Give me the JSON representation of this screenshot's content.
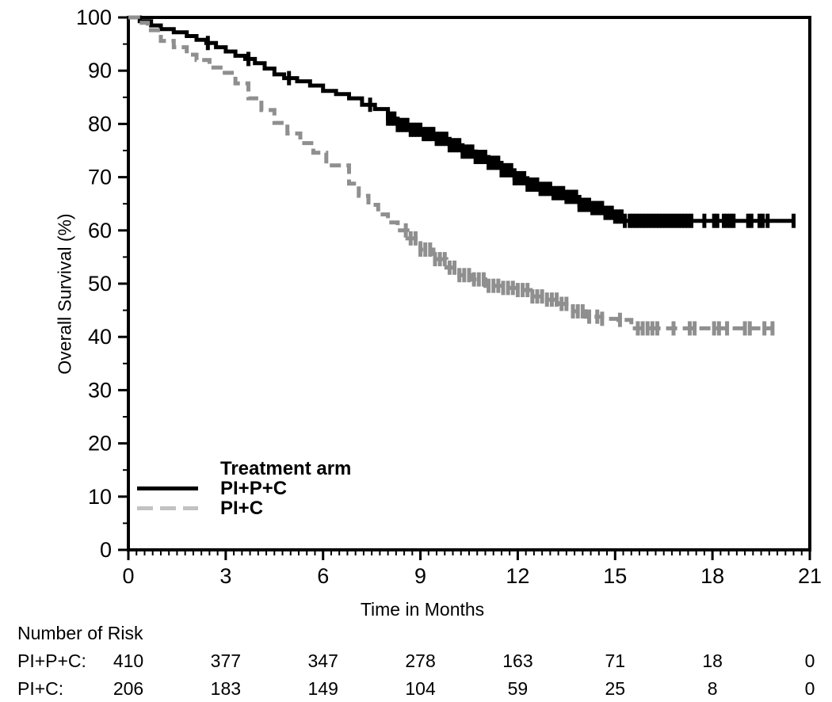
{
  "figure": {
    "background": "#ffffff",
    "axis_color": "#000000",
    "text_color": "#000000"
  },
  "chart_data": {
    "type": "line",
    "subtype": "kaplan-meier-step",
    "title": "",
    "xlabel": "Time in Months",
    "ylabel": "Overall Survival (%)",
    "xlim": [
      0,
      21
    ],
    "ylim": [
      0,
      100
    ],
    "x_major_ticks": [
      0,
      3,
      6,
      9,
      12,
      15,
      18,
      21
    ],
    "x_minor_interval": 0.25,
    "y_major_ticks": [
      0,
      10,
      20,
      30,
      40,
      50,
      60,
      70,
      80,
      90,
      100
    ],
    "y_minor_interval": 5,
    "grid": false,
    "frame": true,
    "legend": {
      "title": "Treatment arm",
      "position": "inside-lower-left",
      "entries": [
        {
          "label": "PI+P+C",
          "swatch_color": "#000000",
          "line_style": "solid"
        },
        {
          "label": "PI+C",
          "swatch_color": "#c2c2c2",
          "line_style": "dashed"
        }
      ]
    },
    "series": [
      {
        "name": "PI+P+C",
        "color": "#000000",
        "line_style": "solid",
        "points": [
          [
            0,
            100
          ],
          [
            0.35,
            99.3
          ],
          [
            0.7,
            98.5
          ],
          [
            1.0,
            97.8
          ],
          [
            1.4,
            97.2
          ],
          [
            1.8,
            96.5
          ],
          [
            2.1,
            95.8
          ],
          [
            2.4,
            95.2
          ],
          [
            2.7,
            94.4
          ],
          [
            3.0,
            93.6
          ],
          [
            3.3,
            92.8
          ],
          [
            3.6,
            92.2
          ],
          [
            3.9,
            91.4
          ],
          [
            4.2,
            90.4
          ],
          [
            4.5,
            89.3
          ],
          [
            4.8,
            88.6
          ],
          [
            5.2,
            88.0
          ],
          [
            5.6,
            87.2
          ],
          [
            6.0,
            86.2
          ],
          [
            6.4,
            85.6
          ],
          [
            6.8,
            84.8
          ],
          [
            7.2,
            83.6
          ],
          [
            7.6,
            82.8
          ],
          [
            8.0,
            81.0
          ],
          [
            8.3,
            79.8
          ],
          [
            8.7,
            78.9
          ],
          [
            9.1,
            78.1
          ],
          [
            9.5,
            77.2
          ],
          [
            9.9,
            76.0
          ],
          [
            10.3,
            74.8
          ],
          [
            10.7,
            73.8
          ],
          [
            11.1,
            72.7
          ],
          [
            11.5,
            71.3
          ],
          [
            11.9,
            69.8
          ],
          [
            12.3,
            68.6
          ],
          [
            12.7,
            67.8
          ],
          [
            13.1,
            67.0
          ],
          [
            13.5,
            66.3
          ],
          [
            13.9,
            64.8
          ],
          [
            14.3,
            64.2
          ],
          [
            14.7,
            63.3
          ],
          [
            15.0,
            62.6
          ],
          [
            15.3,
            61.8
          ],
          [
            20.55,
            61.8
          ]
        ],
        "censor_times": [
          2.45,
          3.7,
          4.95,
          7.45,
          8.0,
          8.1,
          8.2,
          8.3,
          8.4,
          8.5,
          8.6,
          8.7,
          8.8,
          8.9,
          9.0,
          9.1,
          9.2,
          9.3,
          9.4,
          9.5,
          9.6,
          9.7,
          9.8,
          9.9,
          10.0,
          10.1,
          10.2,
          10.3,
          10.4,
          10.5,
          10.6,
          10.7,
          10.8,
          10.9,
          11.0,
          11.1,
          11.2,
          11.3,
          11.4,
          11.5,
          11.6,
          11.7,
          11.8,
          11.9,
          12.0,
          12.1,
          12.2,
          12.3,
          12.4,
          12.5,
          12.6,
          12.7,
          12.8,
          12.9,
          13.0,
          13.1,
          13.2,
          13.3,
          13.4,
          13.5,
          13.6,
          13.7,
          13.8,
          13.9,
          14.0,
          14.1,
          14.2,
          14.3,
          14.4,
          14.5,
          14.6,
          14.7,
          14.8,
          14.9,
          15.0,
          15.1,
          15.2,
          15.3,
          15.45,
          15.55,
          15.65,
          15.75,
          15.85,
          15.95,
          16.05,
          16.15,
          16.25,
          16.35,
          16.45,
          16.55,
          16.65,
          16.75,
          16.85,
          16.95,
          17.05,
          17.15,
          17.25,
          17.35,
          17.75,
          18.05,
          18.15,
          18.35,
          18.45,
          18.55,
          18.65,
          19.1,
          19.2,
          19.45,
          19.55,
          19.7,
          20.5
        ]
      },
      {
        "name": "PI+C",
        "color": "#8f8f8f",
        "line_style": "dashed",
        "points": [
          [
            0,
            100
          ],
          [
            0.3,
            99.0
          ],
          [
            0.6,
            97.6
          ],
          [
            1.0,
            95.6
          ],
          [
            1.4,
            94.4
          ],
          [
            1.8,
            93.0
          ],
          [
            2.1,
            92.0
          ],
          [
            2.5,
            90.6
          ],
          [
            2.9,
            89.6
          ],
          [
            3.3,
            87.6
          ],
          [
            3.7,
            84.8
          ],
          [
            4.1,
            82.6
          ],
          [
            4.5,
            80.2
          ],
          [
            4.9,
            78.2
          ],
          [
            5.3,
            76.4
          ],
          [
            5.7,
            74.6
          ],
          [
            6.1,
            72.2
          ],
          [
            6.8,
            68.8
          ],
          [
            7.1,
            66.5
          ],
          [
            7.4,
            64.8
          ],
          [
            7.7,
            63.0
          ],
          [
            8.0,
            61.5
          ],
          [
            8.3,
            60.0
          ],
          [
            8.6,
            58.5
          ],
          [
            9.0,
            56.4
          ],
          [
            9.4,
            54.6
          ],
          [
            9.8,
            53.0
          ],
          [
            10.2,
            51.6
          ],
          [
            10.6,
            50.8
          ],
          [
            11.0,
            49.6
          ],
          [
            11.5,
            49.2
          ],
          [
            12.0,
            48.8
          ],
          [
            12.4,
            47.6
          ],
          [
            12.9,
            47.0
          ],
          [
            13.3,
            46.2
          ],
          [
            13.7,
            44.8
          ],
          [
            14.1,
            43.8
          ],
          [
            14.6,
            43.4
          ],
          [
            15.1,
            43.2
          ],
          [
            15.5,
            41.6
          ],
          [
            19.9,
            41.6
          ]
        ],
        "censor_times": [
          8.55,
          8.7,
          8.85,
          9.0,
          9.15,
          9.3,
          9.45,
          9.6,
          9.75,
          9.9,
          10.05,
          10.2,
          10.35,
          10.5,
          10.65,
          10.8,
          10.95,
          11.1,
          11.25,
          11.4,
          11.55,
          11.7,
          11.85,
          12.0,
          12.15,
          12.3,
          12.45,
          12.6,
          12.75,
          12.9,
          13.05,
          13.2,
          13.35,
          13.5,
          13.7,
          13.85,
          14.0,
          14.2,
          14.45,
          14.6,
          15.15,
          15.7,
          15.85,
          16.0,
          16.15,
          16.3,
          16.8,
          17.3,
          17.45,
          18.05,
          18.2,
          18.45,
          19.0,
          19.15,
          19.6,
          19.85
        ]
      }
    ],
    "at_risk_table": {
      "header": "Number of Risk",
      "times": [
        0,
        3,
        6,
        9,
        12,
        15,
        18,
        21
      ],
      "rows": [
        {
          "label": "PI+P+C:",
          "values": [
            410,
            377,
            347,
            278,
            163,
            71,
            18,
            0
          ]
        },
        {
          "label": "PI+C:",
          "values": [
            206,
            183,
            149,
            104,
            59,
            25,
            8,
            0
          ]
        }
      ]
    }
  }
}
